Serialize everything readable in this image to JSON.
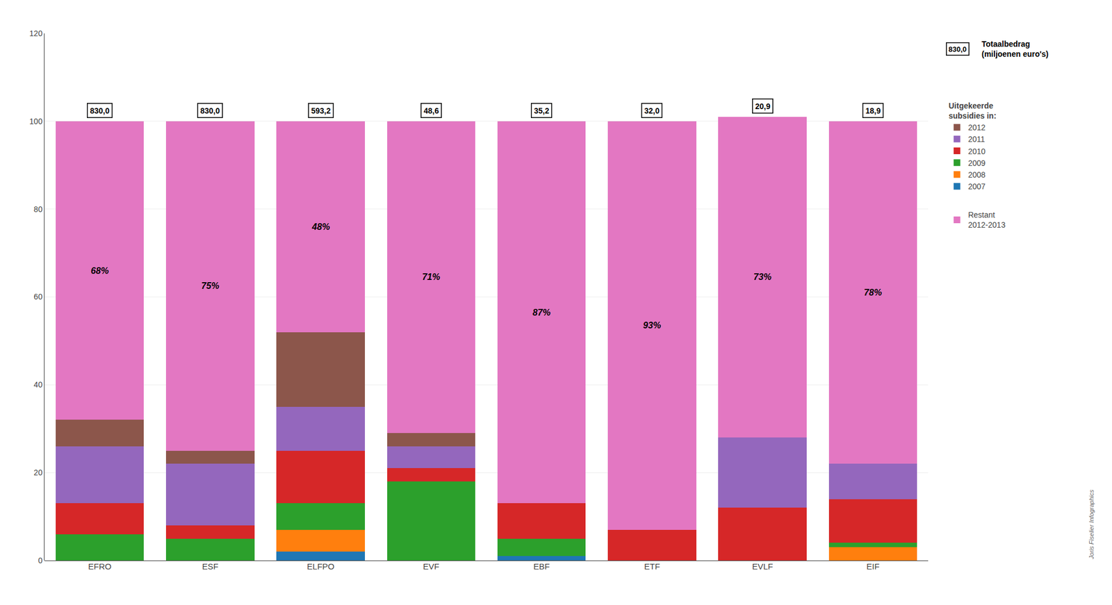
{
  "chart_data": {
    "type": "bar",
    "stacked": true,
    "categories": [
      "EFRO",
      "ESF",
      "ELFPO",
      "EVF",
      "EBF",
      "ETF",
      "EVLF",
      "EIF"
    ],
    "series": [
      {
        "name": "2007",
        "values": [
          0,
          0,
          2,
          0,
          1,
          0,
          0,
          0
        ]
      },
      {
        "name": "2008",
        "values": [
          0,
          0,
          5,
          0,
          0,
          0,
          0,
          3
        ]
      },
      {
        "name": "2009",
        "values": [
          6,
          5,
          6,
          18,
          4,
          0,
          0,
          1
        ]
      },
      {
        "name": "2010",
        "values": [
          7,
          3,
          12,
          3,
          8,
          7,
          12,
          10
        ]
      },
      {
        "name": "2011",
        "values": [
          13,
          14,
          10,
          5,
          0,
          0,
          16,
          8
        ]
      },
      {
        "name": "2012",
        "values": [
          6,
          3,
          17,
          3,
          0,
          0,
          0,
          0
        ]
      },
      {
        "name": "Restant\n2012-2013",
        "values": [
          68,
          75,
          48,
          71,
          87,
          93,
          73,
          78
        ],
        "data_labels": true,
        "value_labels": [
          "68%",
          "75%",
          "48%",
          "71%",
          "87%",
          "93%",
          "73%",
          "78%"
        ]
      }
    ],
    "totals": {
      "values": [
        830.0,
        830.0,
        593.2,
        48.6,
        35.2,
        32.0,
        20.9,
        18.9
      ],
      "value_labels": [
        "830,0",
        "830,0",
        "593,2",
        "48,6",
        "35,2",
        "32,0",
        "20,9",
        "18,9"
      ]
    },
    "totals_legend": {
      "sample": "830,0",
      "text": "Totaalbedrag\n(miljoenen euro's)"
    },
    "legend_title": "Uitgekeerde\nsubsidies in:",
    "annotations": [
      "Joris Fiselier Infographics"
    ],
    "ylim": [
      0,
      120
    ],
    "yticks": [
      0,
      20,
      40,
      60,
      80,
      100,
      120
    ],
    "grid": true,
    "legend": "right"
  }
}
